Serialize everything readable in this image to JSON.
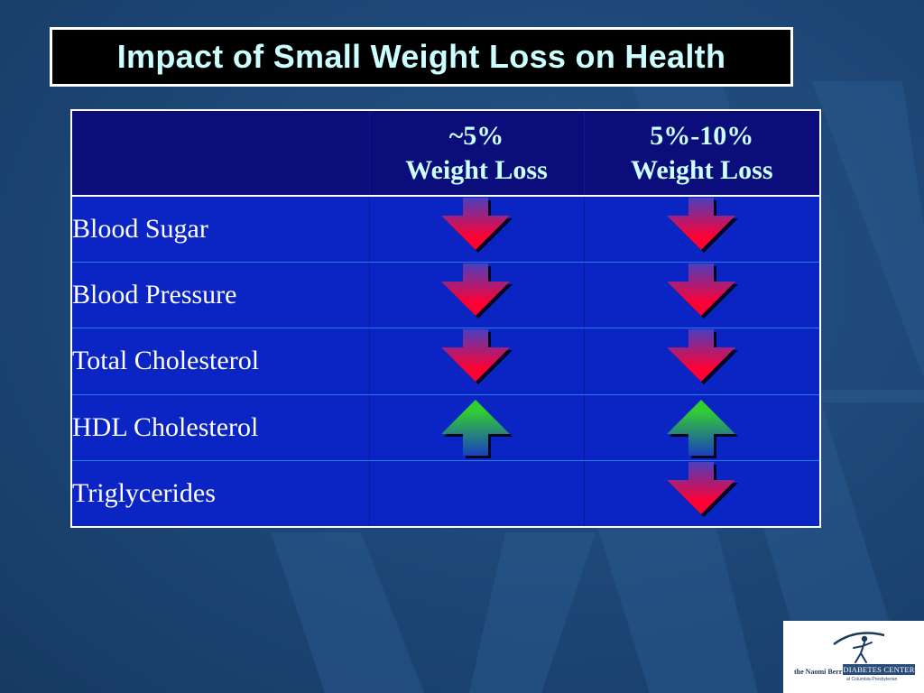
{
  "slide": {
    "title": "Impact of Small Weight Loss on Health",
    "background_color": "#1e4a78"
  },
  "table": {
    "columns": [
      {
        "line1": "",
        "line2": ""
      },
      {
        "line1": "~5%",
        "line2": "Weight Loss"
      },
      {
        "line1": "5%-10%",
        "line2": "Weight Loss"
      }
    ],
    "rows": [
      {
        "label": "Blood Sugar",
        "five_pct": "down",
        "five_to_ten_pct": "down"
      },
      {
        "label": "Blood Pressure",
        "five_pct": "down",
        "five_to_ten_pct": "down"
      },
      {
        "label": "Total Cholesterol",
        "five_pct": "down",
        "five_to_ten_pct": "down"
      },
      {
        "label": "HDL Cholesterol",
        "five_pct": "up",
        "five_to_ten_pct": "up"
      },
      {
        "label": "Triglycerides",
        "five_pct": "",
        "five_to_ten_pct": "down"
      }
    ],
    "colors": {
      "header_bg": "#0a0d7a",
      "row_bg": "#0b24c4",
      "header_text": "#ccffff",
      "down_arrow": "#ff0033",
      "up_arrow": "#33cc33"
    }
  },
  "logo": {
    "left_text": "the Naomi Berrie",
    "right_text": "DIABETES CENTER",
    "sub_text": "at Columbia-Presbyterian",
    "icon": "figure-emblem-icon"
  }
}
